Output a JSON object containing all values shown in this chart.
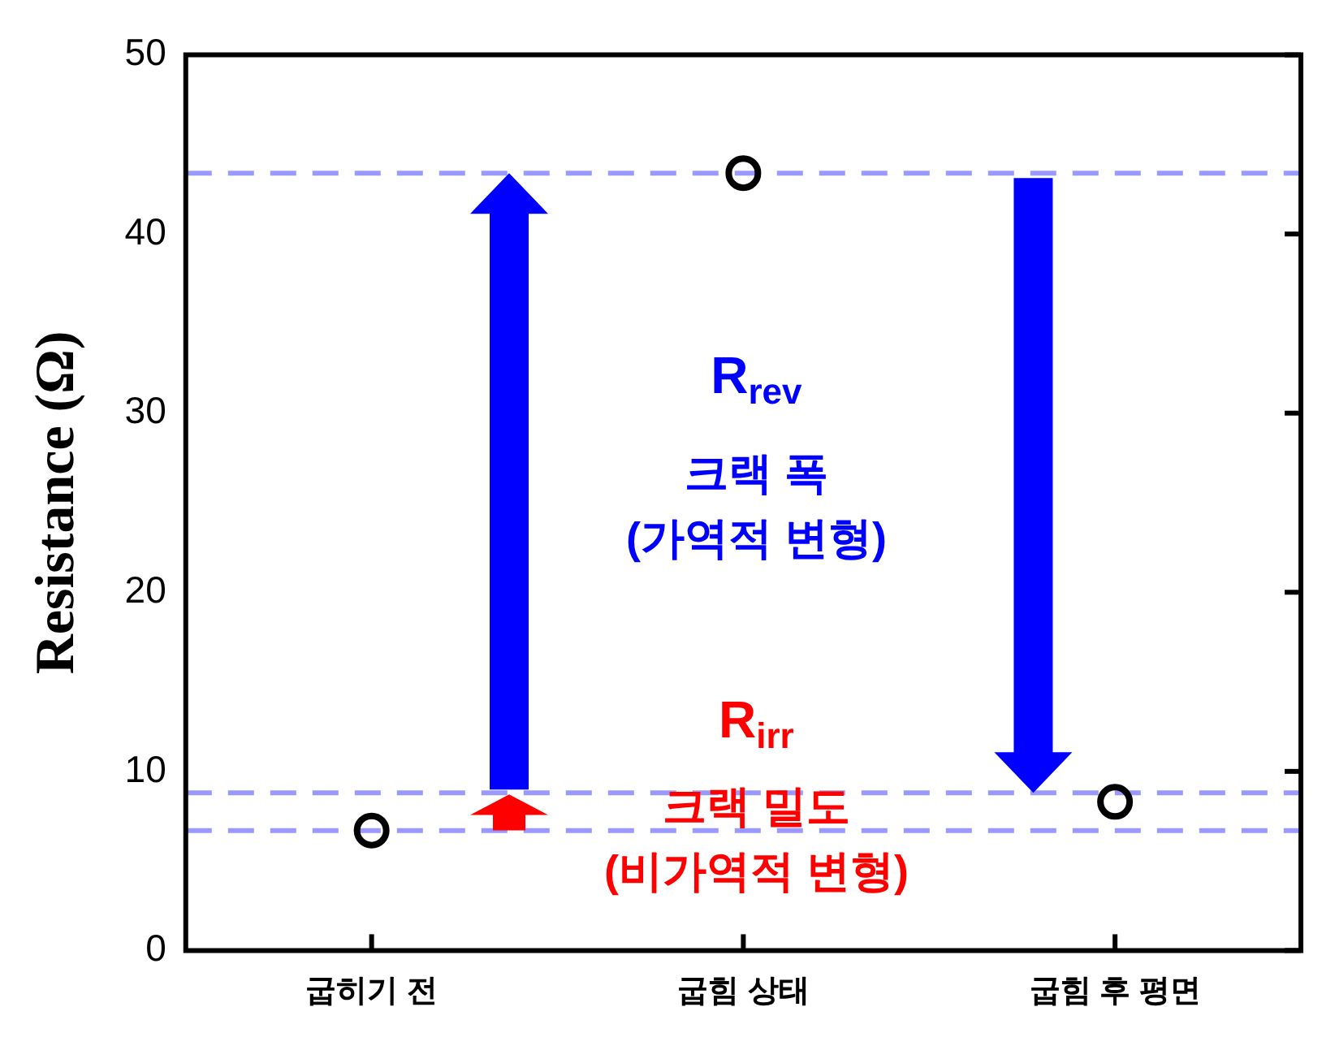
{
  "chart_data": {
    "type": "scatter",
    "ylabel": "Resistance (Ω)",
    "categories": [
      "굽히기 전",
      "굽힘 상태",
      "굽힘 후 평면"
    ],
    "series": [
      {
        "color": "#000000",
        "values": [
          6.7,
          43.4,
          8.3
        ]
      }
    ],
    "ylim": [
      0,
      50
    ],
    "yticks": [
      0,
      10,
      20,
      30,
      40,
      50
    ],
    "grid": false,
    "legend": false,
    "marker": "circle",
    "ref_lines": [
      {
        "axis": "y",
        "value": 43.4,
        "color": "#9999ff",
        "line_style": "dashed"
      },
      {
        "axis": "y",
        "value": 8.8,
        "color": "#9999ff",
        "line_style": "dashed"
      },
      {
        "axis": "y",
        "value": 6.7,
        "color": "#9999ff",
        "line_style": "dashed"
      }
    ],
    "annotations": [
      "R$_{rev}$",
      "크랙 폭",
      "(가역적 변형)",
      "R$_{irr}$",
      "크랙 밀도",
      "(비가역적 변형)"
    ]
  }
}
